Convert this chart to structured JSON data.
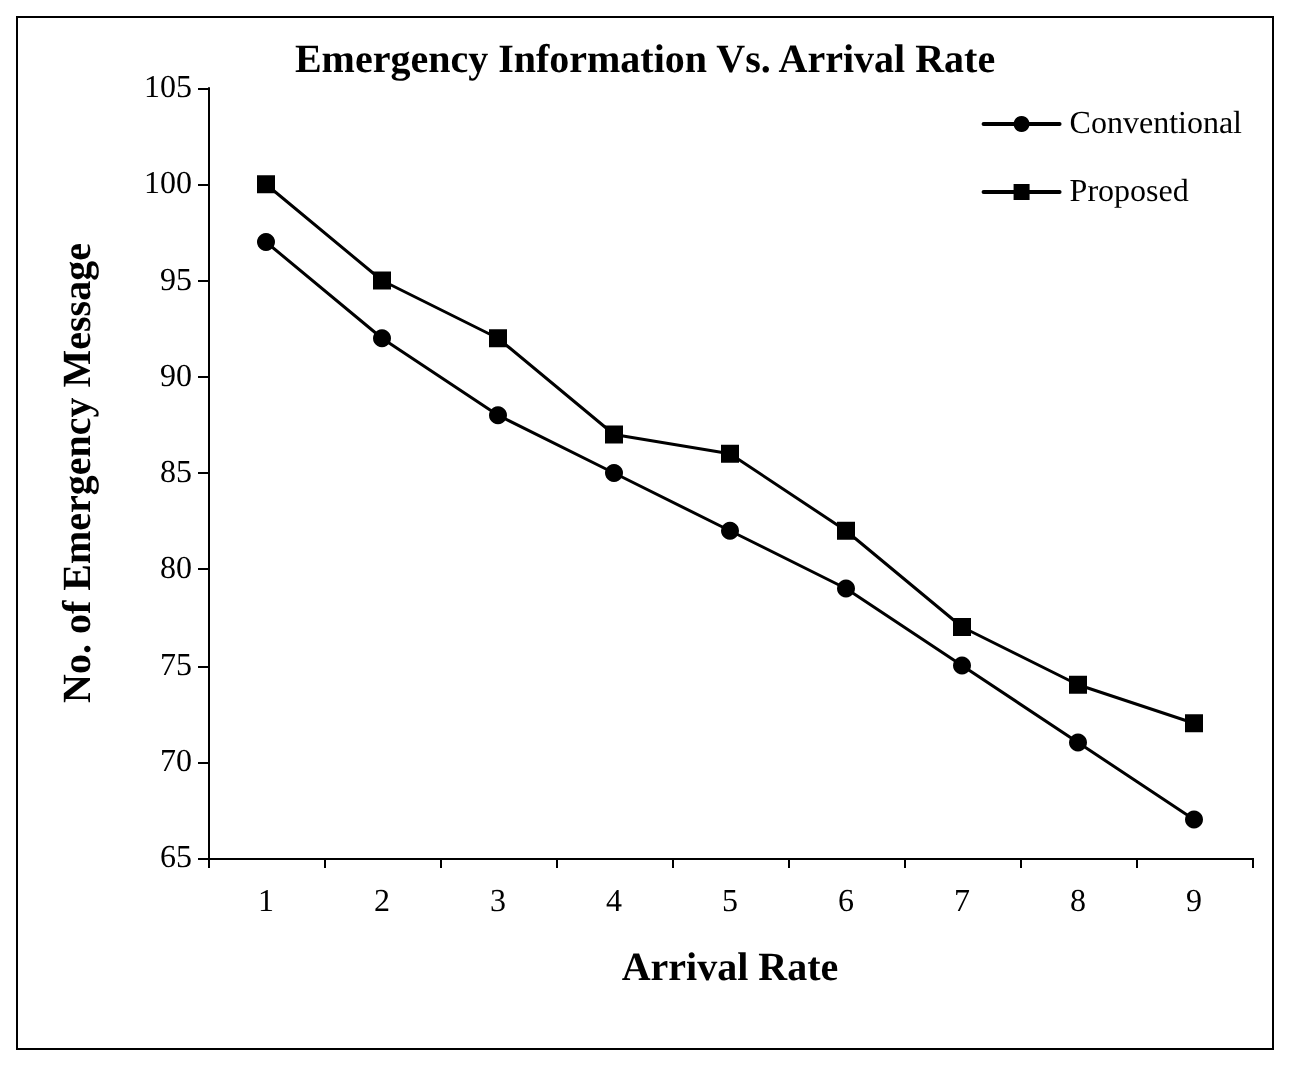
{
  "chart_data": {
    "type": "line",
    "title": "Emergency Information Vs. Arrival Rate",
    "xlabel": "Arrival Rate",
    "ylabel": "No. of Emergency Message",
    "categories": [
      "1",
      "2",
      "3",
      "4",
      "5",
      "6",
      "7",
      "8",
      "9"
    ],
    "series": [
      {
        "name": "Conventional",
        "color": "#000000",
        "marker": "circle",
        "values": [
          97,
          92,
          88,
          85,
          82,
          79,
          75,
          71,
          67
        ]
      },
      {
        "name": "Proposed",
        "color": "#000000",
        "marker": "square",
        "values": [
          100,
          95,
          92,
          87,
          86,
          82,
          77,
          74,
          72
        ]
      }
    ],
    "ylim": [
      65,
      105
    ],
    "yticks": [
      65,
      70,
      75,
      80,
      85,
      90,
      95,
      100,
      105
    ],
    "grid": false,
    "legend": "top right",
    "line_style": "solid"
  }
}
